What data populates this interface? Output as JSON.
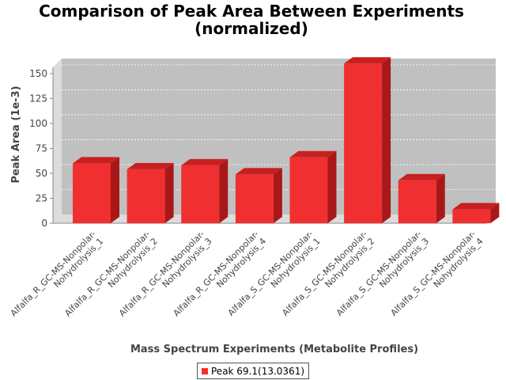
{
  "chart_data": {
    "type": "bar",
    "title": [
      "Comparison of Peak Area Between Experiments",
      "(normalized)"
    ],
    "xlabel": "Mass Spectrum Experiments (Metabolite Profiles)",
    "ylabel": "Peak Area (1e-3)",
    "ylim": [
      0,
      165
    ],
    "yticks": [
      0,
      25,
      50,
      75,
      100,
      125,
      150
    ],
    "categories": [
      [
        "Alfalfa_R_GC-MS-Nonpolar-",
        "Nohydrolysis_1"
      ],
      [
        "Alfalfa_R_GC-MS-Nonpolar-",
        "Nohydrolysis_2"
      ],
      [
        "Alfalfa_R_GC-MS-Nonpolar-",
        "Nohydrolysis_3"
      ],
      [
        "Alfalfa_R_GC-MS-Nonpolar-",
        "Nohydrolysis_4"
      ],
      [
        "Alfalfa_S_GC-MS-Nonpolar-",
        "Nohydrolysis_1"
      ],
      [
        "Alfalfa_S_GC-MS-Nonpolar-",
        "Nohydrolysis_2"
      ],
      [
        "Alfalfa_S_GC-MS-Nonpolar-",
        "Nohydrolysis_3"
      ],
      [
        "Alfalfa_S_GC-MS-Nonpolar-",
        "Nohydrolysis_4"
      ]
    ],
    "series": [
      {
        "name": "Peak 69.1(13.0361)",
        "color": "#f03030",
        "values": [
          60,
          54,
          58,
          49,
          66,
          160,
          43,
          14
        ]
      }
    ],
    "grid": true,
    "legend_position": "bottom"
  }
}
